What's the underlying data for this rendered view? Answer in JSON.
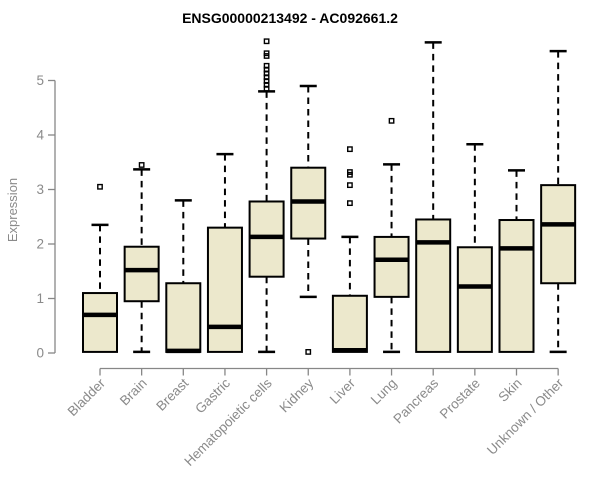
{
  "page": {
    "title": "ENSG00000213492 - AC092661.2"
  },
  "chart_data": {
    "type": "boxplot",
    "title": "ENSG00000213492 - AC092661.2",
    "ylabel": "Expression",
    "xlabel": "",
    "ylim": [
      0,
      5.8
    ],
    "yticks": [
      0,
      1,
      2,
      3,
      4,
      5
    ],
    "grid": false,
    "legend": "none",
    "categories": [
      "Bladder",
      "Brain",
      "Breast",
      "Gastric",
      "Hematopoietic cells",
      "Kidney",
      "Liver",
      "Lung",
      "Pancreas",
      "Prostate",
      "Skin",
      "Unknown / Other"
    ],
    "series": [
      {
        "name": "Bladder",
        "whisker_low": 0,
        "q1": 0.02,
        "median": 0.7,
        "q3": 1.1,
        "whisker_high": 2.35,
        "outliers": [
          3.05
        ]
      },
      {
        "name": "Brain",
        "whisker_low": 0.02,
        "q1": 0.95,
        "median": 1.52,
        "q3": 1.95,
        "whisker_high": 3.37,
        "outliers": [
          3.45
        ]
      },
      {
        "name": "Breast",
        "whisker_low": 0,
        "q1": 0.02,
        "median": 0.04,
        "q3": 1.28,
        "whisker_high": 2.8,
        "outliers": []
      },
      {
        "name": "Gastric",
        "whisker_low": 0,
        "q1": 0.02,
        "median": 0.48,
        "q3": 2.3,
        "whisker_high": 3.65,
        "outliers": []
      },
      {
        "name": "Hematopoietic cells",
        "whisker_low": 0.02,
        "q1": 1.4,
        "median": 2.13,
        "q3": 2.78,
        "whisker_high": 4.8,
        "outliers": [
          4.85,
          4.92,
          4.99,
          5.06,
          5.13,
          5.2,
          5.27,
          5.45,
          5.5,
          5.72
        ]
      },
      {
        "name": "Kidney",
        "whisker_low": 1.03,
        "q1": 2.1,
        "median": 2.78,
        "q3": 3.4,
        "whisker_high": 4.9,
        "outliers": [
          0.02
        ]
      },
      {
        "name": "Liver",
        "whisker_low": 0,
        "q1": 0.02,
        "median": 0.05,
        "q3": 1.05,
        "whisker_high": 2.13,
        "outliers": [
          2.75,
          3.08,
          3.27,
          3.32,
          3.74
        ]
      },
      {
        "name": "Lung",
        "whisker_low": 0.02,
        "q1": 1.03,
        "median": 1.71,
        "q3": 2.13,
        "whisker_high": 3.46,
        "outliers": [
          4.26
        ]
      },
      {
        "name": "Pancreas",
        "whisker_low": 0,
        "q1": 0.02,
        "median": 2.03,
        "q3": 2.45,
        "whisker_high": 5.7,
        "outliers": []
      },
      {
        "name": "Prostate",
        "whisker_low": 0,
        "q1": 0.02,
        "median": 1.22,
        "q3": 1.94,
        "whisker_high": 3.83,
        "outliers": []
      },
      {
        "name": "Skin",
        "whisker_low": 0,
        "q1": 0.02,
        "median": 1.92,
        "q3": 2.44,
        "whisker_high": 3.35,
        "outliers": []
      },
      {
        "name": "Unknown / Other",
        "whisker_low": 0.02,
        "q1": 1.28,
        "median": 2.36,
        "q3": 3.08,
        "whisker_high": 5.54,
        "outliers": []
      }
    ]
  },
  "colors": {
    "background": "#FFFFFF",
    "box_fill": "#ECE8CC",
    "box_border": "#000000",
    "median": "#000000",
    "whisker": "#000000",
    "axis": "#878787",
    "tick_label": "#8A8A8A",
    "title": "#000000"
  }
}
